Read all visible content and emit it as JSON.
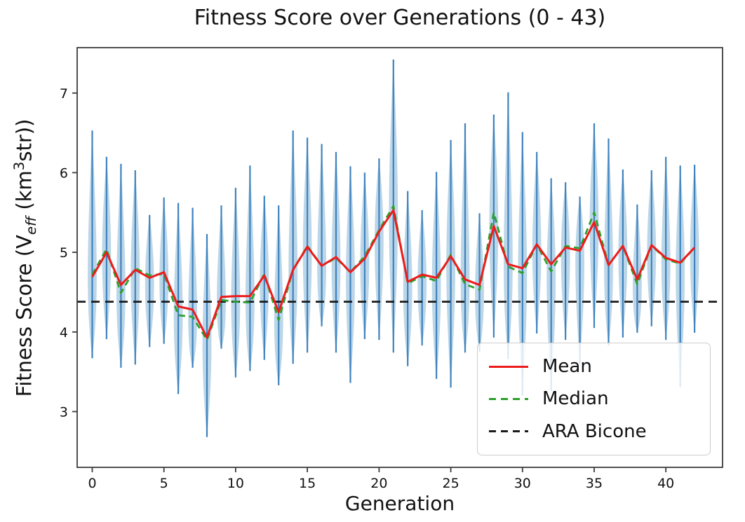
{
  "title": "Fitness Score over Generations (0 - 43)",
  "xlabel": "Generation",
  "ylabel": {
    "prefix": "Fitness Score (V",
    "sub": "eff",
    "mid": " (km",
    "sup": "3",
    "suffix": "str))"
  },
  "legend": {
    "position": "lower right",
    "items": [
      {
        "label": "Mean",
        "color": "#ed1c1c",
        "style": "solid"
      },
      {
        "label": "Median",
        "color": "#2ca02c",
        "style": "dashed"
      },
      {
        "label": "ARA Bicone",
        "color": "#1a1a1a",
        "style": "dashed"
      }
    ]
  },
  "chart_data": {
    "type": "violin+line",
    "title": "Fitness Score over Generations (0 - 43)",
    "xlabel": "Generation",
    "ylabel": "Fitness Score (V_eff (km^3 str))",
    "x": [
      0,
      1,
      2,
      3,
      4,
      5,
      6,
      7,
      8,
      9,
      10,
      11,
      12,
      13,
      14,
      15,
      16,
      17,
      18,
      19,
      20,
      21,
      22,
      23,
      24,
      25,
      26,
      27,
      28,
      29,
      30,
      31,
      32,
      33,
      34,
      35,
      36,
      37,
      38,
      39,
      40,
      41,
      42
    ],
    "series": [
      {
        "name": "Mean",
        "color": "#ed1c1c",
        "style": "solid",
        "values": [
          4.69,
          5.0,
          4.59,
          4.78,
          4.68,
          4.75,
          4.32,
          4.28,
          3.93,
          4.44,
          4.45,
          4.45,
          4.71,
          4.25,
          4.78,
          5.07,
          4.83,
          4.94,
          4.75,
          4.92,
          5.26,
          5.53,
          4.63,
          4.72,
          4.68,
          4.95,
          4.66,
          4.59,
          5.33,
          4.85,
          4.8,
          5.1,
          4.85,
          5.06,
          5.02,
          5.38,
          4.84,
          5.08,
          4.66,
          5.09,
          4.93,
          4.87,
          5.06
        ]
      },
      {
        "name": "Median",
        "color": "#2ca02c",
        "style": "dashed",
        "values": [
          4.72,
          5.04,
          4.49,
          4.8,
          4.71,
          4.73,
          4.21,
          4.19,
          3.9,
          4.4,
          4.38,
          4.37,
          4.73,
          4.15,
          4.78,
          5.08,
          4.83,
          4.93,
          4.75,
          4.95,
          5.28,
          5.58,
          4.61,
          4.7,
          4.64,
          4.97,
          4.6,
          4.53,
          5.5,
          4.82,
          4.74,
          5.1,
          4.76,
          5.08,
          5.05,
          5.5,
          4.84,
          5.08,
          4.6,
          5.09,
          4.91,
          4.86,
          5.06
        ]
      }
    ],
    "violins": {
      "fill": "rgba(31,119,180,0.30)",
      "line_color": "#3f82bd",
      "min": [
        3.67,
        3.91,
        3.55,
        3.59,
        3.81,
        3.85,
        3.22,
        3.55,
        2.68,
        3.79,
        3.43,
        3.51,
        3.65,
        3.33,
        3.6,
        3.74,
        4.07,
        3.74,
        3.36,
        3.91,
        3.9,
        3.74,
        3.57,
        3.83,
        3.41,
        3.3,
        3.74,
        3.75,
        3.93,
        3.66,
        3.2,
        3.98,
        3.26,
        3.9,
        3.6,
        4.05,
        3.83,
        3.93,
        3.99,
        4.07,
        3.9,
        3.31,
        3.99
      ],
      "max": [
        6.53,
        6.2,
        6.11,
        6.03,
        5.47,
        5.69,
        5.62,
        5.56,
        5.23,
        5.59,
        5.81,
        6.09,
        5.71,
        5.59,
        6.53,
        6.44,
        6.36,
        6.26,
        6.08,
        6.0,
        6.18,
        7.42,
        5.77,
        5.53,
        6.01,
        6.41,
        6.62,
        5.49,
        6.73,
        7.01,
        6.51,
        6.26,
        5.93,
        5.88,
        5.7,
        6.62,
        6.43,
        6.04,
        5.6,
        6.03,
        6.2,
        6.09,
        6.1
      ]
    },
    "reference_line": {
      "label": "ARA Bicone",
      "value": 4.38,
      "color": "#1a1a1a",
      "style": "dashed"
    },
    "xlim": [
      -1.05,
      43.95
    ],
    "ylim": [
      2.3,
      7.57
    ],
    "xticks": [
      0,
      5,
      10,
      15,
      20,
      25,
      30,
      35,
      40
    ],
    "yticks": [
      3,
      4,
      5,
      6,
      7
    ],
    "grid": false,
    "legend_position": "lower right"
  }
}
